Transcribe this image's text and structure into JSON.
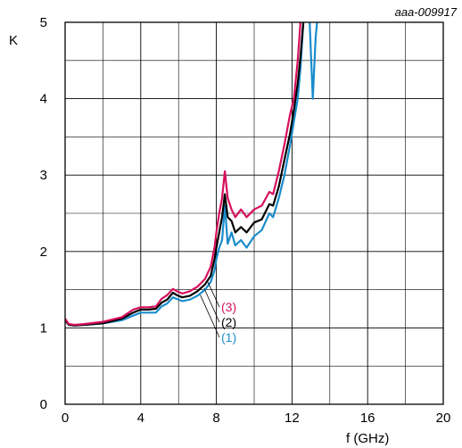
{
  "chart_data": {
    "type": "line",
    "title": "",
    "reference": "aaa-009917",
    "xlabel": "f (GHz)",
    "ylabel": "K",
    "xlim": [
      0,
      20
    ],
    "ylim": [
      0,
      5
    ],
    "xticks": [
      "0",
      "4",
      "8",
      "12",
      "16",
      "20"
    ],
    "yticks": [
      "0",
      "1",
      "2",
      "3",
      "4",
      "5"
    ],
    "grid": true,
    "series": [
      {
        "name": "(1)",
        "color": "#1a8ccc",
        "x": [
          0.0,
          0.2,
          0.5,
          1.0,
          2.0,
          3.0,
          3.6,
          4.0,
          4.4,
          4.8,
          5.1,
          5.4,
          5.7,
          5.9,
          6.2,
          6.6,
          7.0,
          7.4,
          7.7,
          7.9,
          8.0,
          8.15,
          8.3,
          8.45,
          8.6,
          8.8,
          9.0,
          9.3,
          9.6,
          10.0,
          10.4,
          10.8,
          11.0,
          11.3,
          11.6,
          11.9,
          12.1,
          12.3,
          12.45,
          12.6,
          12.65,
          12.9,
          13.0,
          13.1,
          13.25,
          13.4
        ],
        "values": [
          1.1,
          1.04,
          1.03,
          1.04,
          1.06,
          1.1,
          1.16,
          1.2,
          1.2,
          1.2,
          1.28,
          1.32,
          1.4,
          1.38,
          1.35,
          1.37,
          1.42,
          1.5,
          1.6,
          1.75,
          1.9,
          2.05,
          2.15,
          2.6,
          2.1,
          2.25,
          2.08,
          2.15,
          2.05,
          2.2,
          2.28,
          2.5,
          2.45,
          2.7,
          3.0,
          3.4,
          3.7,
          4.0,
          4.4,
          5.0,
          5.2,
          5.2,
          4.6,
          4.0,
          4.8,
          5.2
        ]
      },
      {
        "name": "(2)",
        "color": "#000000",
        "x": [
          0.0,
          0.2,
          0.5,
          1.0,
          2.0,
          3.0,
          3.6,
          4.0,
          4.4,
          4.8,
          5.1,
          5.4,
          5.7,
          5.9,
          6.2,
          6.6,
          7.0,
          7.4,
          7.7,
          7.9,
          8.0,
          8.15,
          8.3,
          8.45,
          8.6,
          8.8,
          9.0,
          9.3,
          9.6,
          10.0,
          10.4,
          10.8,
          11.0,
          11.3,
          11.6,
          11.9,
          12.1,
          12.3,
          12.45,
          12.6,
          12.7,
          12.9
        ],
        "values": [
          1.1,
          1.04,
          1.03,
          1.04,
          1.06,
          1.12,
          1.2,
          1.24,
          1.24,
          1.25,
          1.33,
          1.37,
          1.46,
          1.43,
          1.4,
          1.42,
          1.48,
          1.57,
          1.68,
          1.9,
          2.05,
          2.25,
          2.45,
          2.75,
          2.45,
          2.4,
          2.25,
          2.32,
          2.25,
          2.38,
          2.42,
          2.62,
          2.6,
          2.85,
          3.2,
          3.55,
          3.85,
          4.2,
          4.55,
          5.0,
          5.2,
          5.2
        ]
      },
      {
        "name": "(3)",
        "color": "#d6105c",
        "x": [
          0.0,
          0.2,
          0.5,
          1.0,
          2.0,
          3.0,
          3.6,
          4.0,
          4.4,
          4.8,
          5.1,
          5.4,
          5.7,
          5.9,
          6.2,
          6.6,
          7.0,
          7.4,
          7.7,
          7.9,
          8.0,
          8.15,
          8.3,
          8.45,
          8.6,
          8.8,
          9.0,
          9.3,
          9.6,
          10.0,
          10.4,
          10.8,
          11.0,
          11.3,
          11.6,
          11.9,
          12.1,
          12.3,
          12.45,
          12.6
        ],
        "values": [
          1.12,
          1.05,
          1.04,
          1.05,
          1.08,
          1.14,
          1.24,
          1.27,
          1.27,
          1.28,
          1.38,
          1.43,
          1.51,
          1.48,
          1.45,
          1.48,
          1.54,
          1.64,
          1.8,
          2.05,
          2.25,
          2.5,
          2.7,
          3.05,
          2.7,
          2.55,
          2.45,
          2.55,
          2.45,
          2.55,
          2.6,
          2.78,
          2.75,
          3.05,
          3.4,
          3.8,
          4.0,
          4.5,
          5.0,
          5.2
        ]
      }
    ]
  }
}
